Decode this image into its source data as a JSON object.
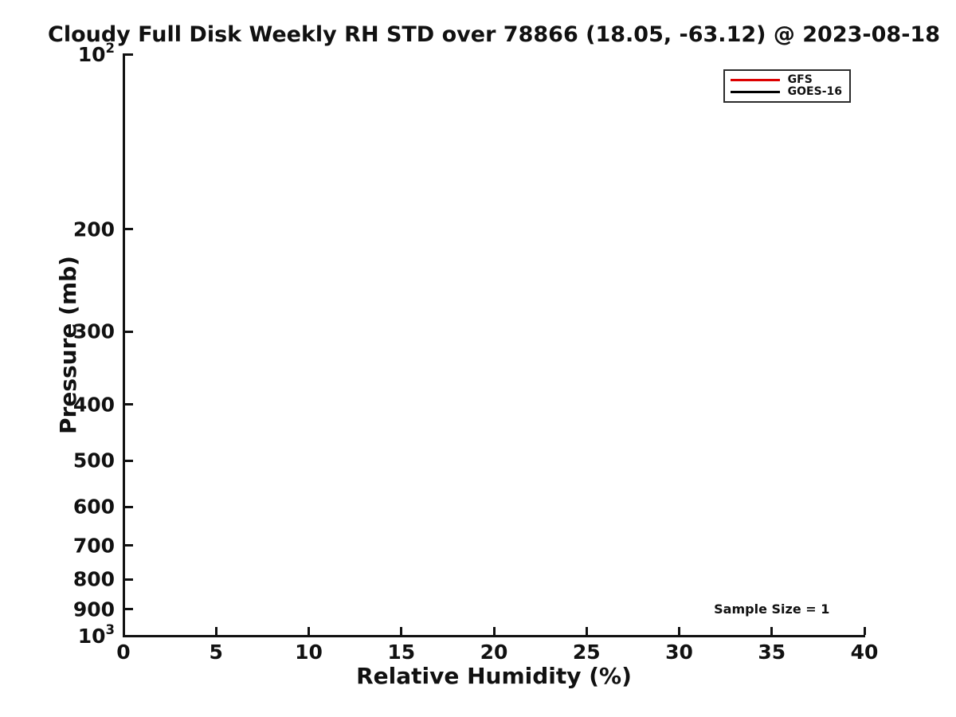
{
  "chart_data": {
    "type": "line",
    "title": "Cloudy Full Disk Weekly RH STD over 78866 (18.05, -63.12) @ 2023-08-18",
    "xlabel": "Relative Humidity (%)",
    "ylabel": "Pressure (mb)",
    "xlim": [
      0,
      40
    ],
    "xticks": [
      0,
      5,
      10,
      15,
      20,
      25,
      30,
      35,
      40
    ],
    "yscale": "log",
    "ylim": [
      100,
      1000
    ],
    "y_axis_inverted": true,
    "yticks": [
      {
        "value": 100,
        "label": "10^2"
      },
      {
        "value": 200,
        "label": "200"
      },
      {
        "value": 300,
        "label": "300"
      },
      {
        "value": 400,
        "label": "400"
      },
      {
        "value": 500,
        "label": "500"
      },
      {
        "value": 600,
        "label": "600"
      },
      {
        "value": 700,
        "label": "700"
      },
      {
        "value": 800,
        "label": "800"
      },
      {
        "value": 900,
        "label": "900"
      },
      {
        "value": 1000,
        "label": "10^3"
      }
    ],
    "grid": false,
    "legend_position": "upper-right",
    "series": [
      {
        "name": "GFS",
        "color": "#dd0000",
        "points": []
      },
      {
        "name": "GOES-16",
        "color": "#000000",
        "points": []
      }
    ],
    "annotations": [
      {
        "text": "Sample Size = 1",
        "x": 35,
        "y": 900
      }
    ],
    "axis_color": "#111111",
    "background_color": "#ffffff"
  }
}
